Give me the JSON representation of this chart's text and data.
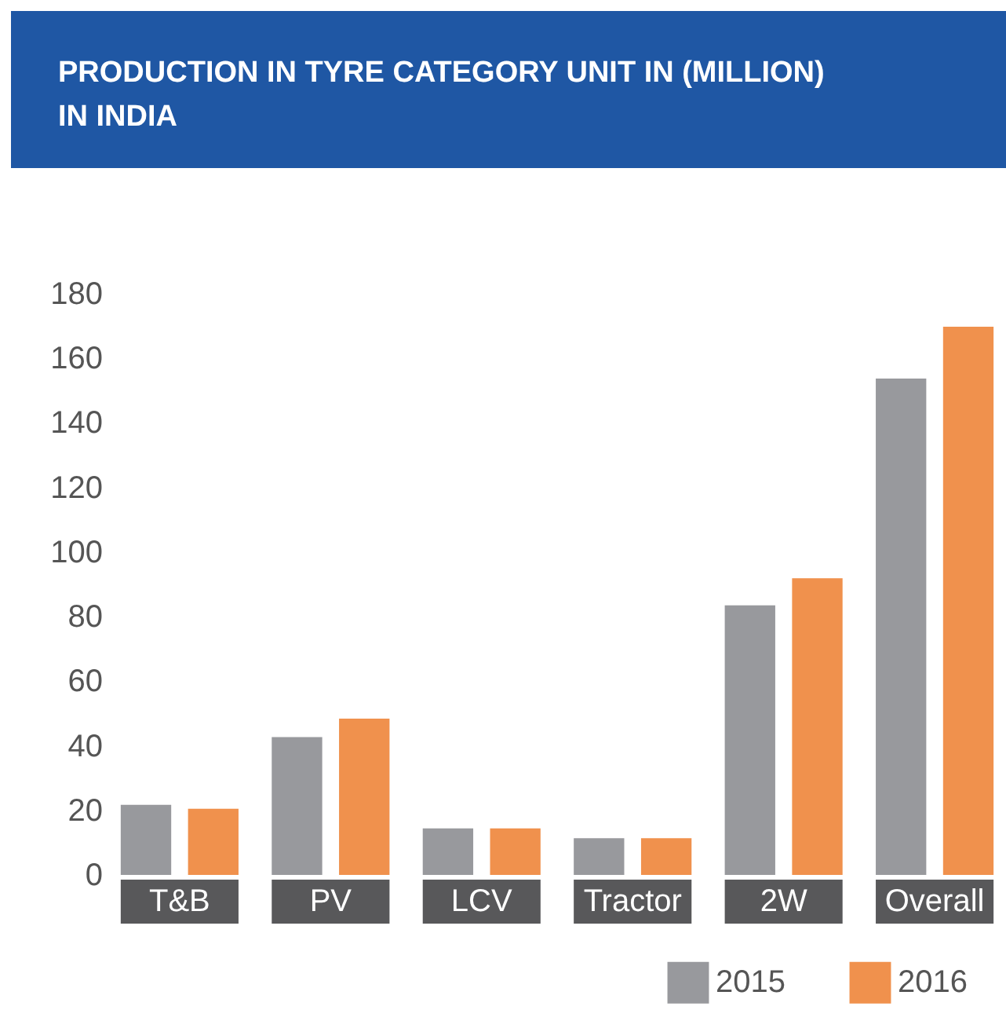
{
  "chart_data": {
    "type": "bar",
    "title": "PRODUCTION IN TYRE CATEGORY   UNIT IN (MILLION) IN INDIA",
    "categories": [
      "T&B",
      "PV",
      "LCV",
      "Tractor",
      "2W",
      "Overall"
    ],
    "series": [
      {
        "name": "2015",
        "color": "#98999d",
        "values": [
          21.7,
          42.7,
          14.4,
          11.4,
          83.5,
          153.7
        ]
      },
      {
        "name": "2016",
        "color": "#f0914d",
        "values": [
          20.5,
          48.4,
          14.4,
          11.4,
          91.9,
          169.8
        ]
      }
    ],
    "ylim": [
      0,
      180
    ],
    "yticks": [
      0,
      20,
      40,
      60,
      80,
      100,
      120,
      140,
      160,
      180
    ],
    "grid": false,
    "legend": "bottom right"
  }
}
